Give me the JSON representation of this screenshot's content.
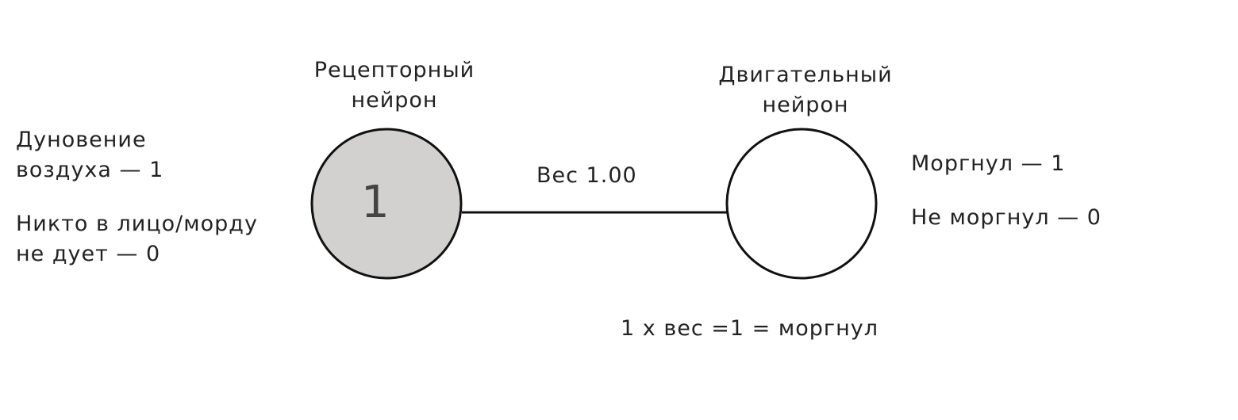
{
  "receptor": {
    "title_line1": "Рецепторный",
    "title_line2": "нейрон",
    "value": "1",
    "fill": "#d2d1cf"
  },
  "motor": {
    "title_line1": "Двигательный",
    "title_line2": "нейрон",
    "fill": "#ffffff"
  },
  "inputs": {
    "line1": "Дуновение",
    "line2": "воздуха — 1",
    "line3": "Никто в лицо/морду",
    "line4": "не дует — 0"
  },
  "outputs": {
    "line1": "Моргнул — 1",
    "line2": "Не моргнул — 0"
  },
  "connection": {
    "weight_label": "Вес 1.00"
  },
  "formula": "1 x вес =1 = моргнул"
}
